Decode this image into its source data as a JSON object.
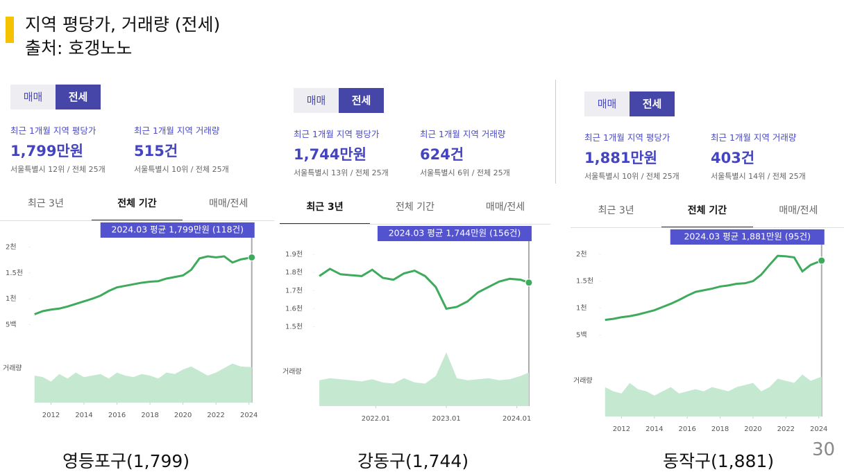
{
  "header": {
    "title": "지역 평당가, 거래량 (전세)",
    "source": "출처: 호갱노노"
  },
  "page_number": "30",
  "panels": [
    {
      "type_tabs": [
        "매매",
        "전세"
      ],
      "active_type": 1,
      "stats": [
        {
          "label": "최근 1개월 지역 평당가",
          "value": "1,799만원",
          "rank": "서울특별시 12위 / 전체 25개"
        },
        {
          "label": "최근 1개월 지역 거래량",
          "value": "515건",
          "rank": "서울특별시 10위 / 전체 25개"
        }
      ],
      "period_tabs": [
        "최근 3년",
        "전체 기간",
        "매매/전세"
      ],
      "active_period": 1,
      "caption": "영등포구(1,799)"
    },
    {
      "type_tabs": [
        "매매",
        "전세"
      ],
      "active_type": 1,
      "stats": [
        {
          "label": "최근 1개월 지역 평당가",
          "value": "1,744만원",
          "rank": "서울특별시 13위 / 전체 25개"
        },
        {
          "label": "최근 1개월 지역 거래량",
          "value": "624건",
          "rank": "서울특별시 6위 / 전체 25개"
        }
      ],
      "period_tabs": [
        "최근 3년",
        "전체 기간",
        "매매/전세"
      ],
      "active_period": 0,
      "caption": "강동구(1,744)"
    },
    {
      "type_tabs": [
        "매매",
        "전세"
      ],
      "active_type": 1,
      "stats": [
        {
          "label": "최근 1개월 지역 평당가",
          "value": "1,881만원",
          "rank": "서울특별시 10위 / 전체 25개"
        },
        {
          "label": "최근 1개월 지역 거래량",
          "value": "403건",
          "rank": "서울특별시 14위 / 전체 25개"
        }
      ],
      "period_tabs": [
        "최근 3년",
        "전체 기간",
        "매매/전세"
      ],
      "active_period": 1,
      "caption": "동작구(1,881)"
    }
  ],
  "chart_data": [
    {
      "type": "line",
      "annotation": "2024.03 평균 1,799만원 (118건)",
      "volume_label": "거래량",
      "x": [
        2011,
        2011.5,
        2012,
        2012.5,
        2013,
        2013.5,
        2014,
        2014.5,
        2015,
        2015.5,
        2016,
        2016.5,
        2017,
        2017.5,
        2018,
        2018.5,
        2019,
        2019.5,
        2020,
        2020.5,
        2021,
        2021.5,
        2022,
        2022.5,
        2023,
        2023.5,
        2024.17
      ],
      "xlim": [
        2010.8,
        2024.35
      ],
      "xticks": [
        2012,
        2014,
        2016,
        2018,
        2020,
        2022,
        2024
      ],
      "ylim": [
        350,
        2100
      ],
      "yticks": [
        {
          "value": 500,
          "label": "5백"
        },
        {
          "value": 1000,
          "label": "1천"
        },
        {
          "value": 1500,
          "label": "1.5천"
        },
        {
          "value": 2000,
          "label": "2천"
        }
      ],
      "y2lim": [
        0,
        200
      ],
      "series": [
        {
          "name": "평당가",
          "color": "#3daa5c",
          "values": [
            700,
            760,
            790,
            810,
            850,
            900,
            950,
            1000,
            1060,
            1150,
            1220,
            1250,
            1280,
            1310,
            1330,
            1340,
            1390,
            1420,
            1450,
            1560,
            1780,
            1820,
            1800,
            1820,
            1700,
            1760,
            1799
          ]
        },
        {
          "name": "거래량",
          "color": "#c5e8d1",
          "axis": "y2",
          "values": [
            90,
            85,
            70,
            95,
            80,
            100,
            85,
            90,
            95,
            80,
            100,
            90,
            85,
            95,
            90,
            80,
            100,
            95,
            110,
            120,
            105,
            90,
            100,
            115,
            130,
            120,
            118
          ]
        }
      ]
    },
    {
      "type": "line",
      "annotation": "2024.03 평균 1,744만원 (156건)",
      "volume_label": "거래량",
      "x": [
        2021.2,
        2021.35,
        2021.5,
        2021.65,
        2021.8,
        2021.95,
        2022.1,
        2022.25,
        2022.4,
        2022.55,
        2022.7,
        2022.85,
        2023.0,
        2023.15,
        2023.3,
        2023.45,
        2023.6,
        2023.75,
        2023.9,
        2024.05,
        2024.17
      ],
      "xlim": [
        2021.15,
        2024.2
      ],
      "xticks": [
        {
          "value": 2022,
          "label": "2022.01"
        },
        {
          "value": 2023,
          "label": "2023.01"
        },
        {
          "value": 2024,
          "label": "2024.01"
        }
      ],
      "ylim": [
        1450,
        1950
      ],
      "yticks": [
        {
          "value": 1500,
          "label": "1.5천"
        },
        {
          "value": 1600,
          "label": "1.6천"
        },
        {
          "value": 1700,
          "label": "1.7천"
        },
        {
          "value": 1800,
          "label": "1.8천"
        },
        {
          "value": 1900,
          "label": "1.9천"
        }
      ],
      "y2lim": [
        0,
        280
      ],
      "series": [
        {
          "name": "평당가",
          "color": "#3daa5c",
          "values": [
            1780,
            1820,
            1790,
            1785,
            1780,
            1815,
            1770,
            1760,
            1795,
            1810,
            1780,
            1720,
            1600,
            1610,
            1640,
            1690,
            1720,
            1750,
            1765,
            1760,
            1744
          ]
        },
        {
          "name": "거래량",
          "color": "#c5e8d1",
          "axis": "y2",
          "values": [
            120,
            130,
            125,
            120,
            115,
            125,
            110,
            105,
            130,
            110,
            105,
            140,
            250,
            130,
            120,
            125,
            130,
            120,
            125,
            140,
            156
          ]
        }
      ]
    },
    {
      "type": "line",
      "annotation": "2024.03 평균 1,881만원 (95건)",
      "volume_label": "거래량",
      "x": [
        2011,
        2011.5,
        2012,
        2012.5,
        2013,
        2013.5,
        2014,
        2014.5,
        2015,
        2015.5,
        2016,
        2016.5,
        2017,
        2017.5,
        2018,
        2018.5,
        2019,
        2019.5,
        2020,
        2020.5,
        2021,
        2021.5,
        2022,
        2022.5,
        2023,
        2023.5,
        2024.17
      ],
      "xlim": [
        2010.8,
        2024.35
      ],
      "xticks": [
        2012,
        2014,
        2016,
        2018,
        2020,
        2022,
        2024
      ],
      "ylim": [
        350,
        2100
      ],
      "yticks": [
        {
          "value": 500,
          "label": "5백"
        },
        {
          "value": 1000,
          "label": "1천"
        },
        {
          "value": 1500,
          "label": "1.5천"
        },
        {
          "value": 2000,
          "label": "2천"
        }
      ],
      "y2lim": [
        0,
        150
      ],
      "series": [
        {
          "name": "평당가",
          "color": "#3daa5c",
          "values": [
            780,
            800,
            830,
            850,
            880,
            920,
            960,
            1020,
            1080,
            1150,
            1230,
            1300,
            1330,
            1360,
            1400,
            1420,
            1450,
            1460,
            1500,
            1620,
            1800,
            1970,
            1960,
            1940,
            1680,
            1800,
            1881
          ]
        },
        {
          "name": "거래량",
          "color": "#c5e8d1",
          "axis": "y2",
          "values": [
            70,
            60,
            55,
            80,
            65,
            60,
            50,
            60,
            70,
            55,
            60,
            65,
            60,
            70,
            65,
            60,
            70,
            75,
            80,
            60,
            70,
            90,
            85,
            80,
            100,
            85,
            95
          ]
        }
      ]
    }
  ]
}
